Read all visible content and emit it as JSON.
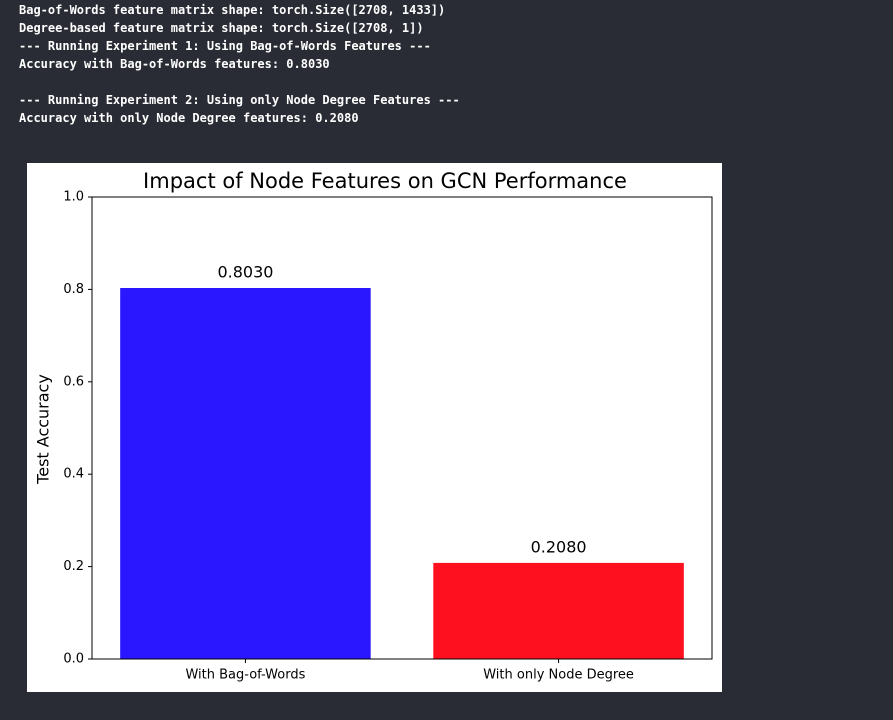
{
  "console": {
    "blocks": [
      [
        "Bag-of-Words feature matrix shape: torch.Size([2708, 1433])",
        "Degree-based feature matrix shape: torch.Size([2708, 1])",
        "--- Running Experiment 1: Using Bag-of-Words Features ---",
        "Accuracy with Bag-of-Words features: 0.8030"
      ],
      [
        "--- Running Experiment 2: Using only Node Degree Features ---",
        "Accuracy with only Node Degree features: 0.2080"
      ]
    ]
  },
  "chart_data": {
    "type": "bar",
    "title": "Impact of Node Features on GCN Performance",
    "y_label": "Test Accuracy",
    "categories": [
      "With Bag-of-Words",
      "With only Node Degree"
    ],
    "values": [
      0.803,
      0.208
    ],
    "value_labels": [
      "0.8030",
      "0.2080"
    ],
    "colors": [
      "#2a17ff",
      "#ff101e"
    ],
    "ylim": [
      0,
      1
    ],
    "yticks": [
      {
        "value": 0,
        "label": "0.0"
      },
      0.2,
      0.4,
      0.6,
      0.8,
      {
        "value": 1,
        "label": "1.0"
      }
    ]
  }
}
